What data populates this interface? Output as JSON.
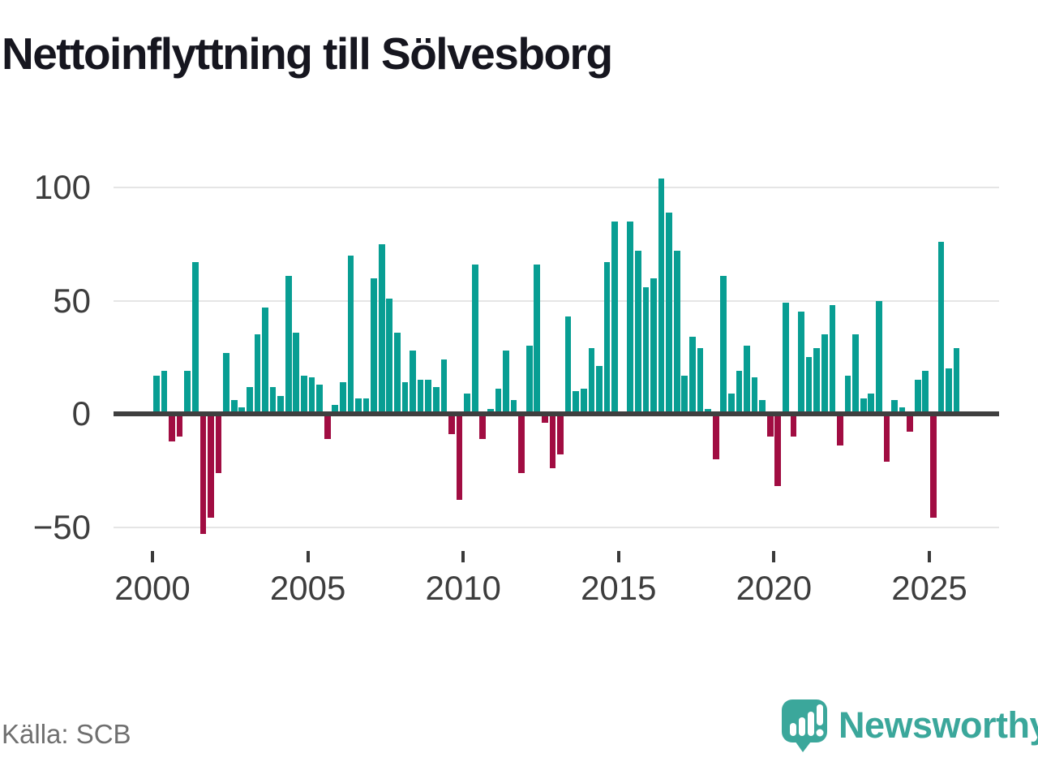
{
  "title": "Nettoinflyttning till Sölvesborg",
  "source": "Källa: SCB",
  "branding": {
    "logo_text": "Newsworthy",
    "logo_icon": "bar-chart-speech-bubble"
  },
  "colors": {
    "positive_bar": "#089e93",
    "negative_bar": "#a10d42",
    "zero_line": "#3f3f3f",
    "gridline": "#e5e5e5",
    "axis_text": "#3d3d3d",
    "title_text": "#16161f",
    "source_text": "#6f6f6f",
    "logo_teal": "#3ba79b"
  },
  "chart_data": {
    "type": "bar",
    "title": "Nettoinflyttning till Sölvesborg",
    "frequency": "quarterly",
    "start_year": 2000,
    "start_quarter": 1,
    "end_year": 2025,
    "end_quarter": 4,
    "values": [
      17,
      19,
      -12,
      -10,
      19,
      67,
      -53,
      -46,
      -26,
      27,
      6,
      3,
      12,
      35,
      47,
      12,
      8,
      61,
      36,
      17,
      16,
      13,
      -11,
      4,
      14,
      70,
      7,
      7,
      60,
      75,
      51,
      36,
      14,
      28,
      15,
      15,
      12,
      24,
      -9,
      -38,
      9,
      66,
      -11,
      2,
      11,
      28,
      6,
      -26,
      30,
      66,
      -4,
      -24,
      -18,
      43,
      10,
      11,
      29,
      21,
      67,
      85,
      0,
      85,
      72,
      56,
      60,
      104,
      89,
      72,
      17,
      34,
      29,
      2,
      -20,
      61,
      9,
      19,
      30,
      16,
      6,
      -10,
      -32,
      49,
      -10,
      45,
      25,
      29,
      35,
      48,
      -14,
      17,
      35,
      7,
      9,
      50,
      -21,
      6,
      3,
      -8,
      15,
      19,
      -46,
      76,
      20,
      29
    ],
    "x_tick_years": [
      2000,
      2005,
      2010,
      2015,
      2020,
      2025
    ],
    "x_tick_labels": [
      "2000",
      "2005",
      "2010",
      "2015",
      "2020",
      "2025"
    ],
    "y_ticks": [
      100,
      50,
      0,
      -50
    ],
    "y_tick_labels": [
      "100",
      "50",
      "0",
      "−50"
    ],
    "ylim": [
      -60,
      110
    ],
    "grid": "horizontal",
    "legend": "none"
  }
}
